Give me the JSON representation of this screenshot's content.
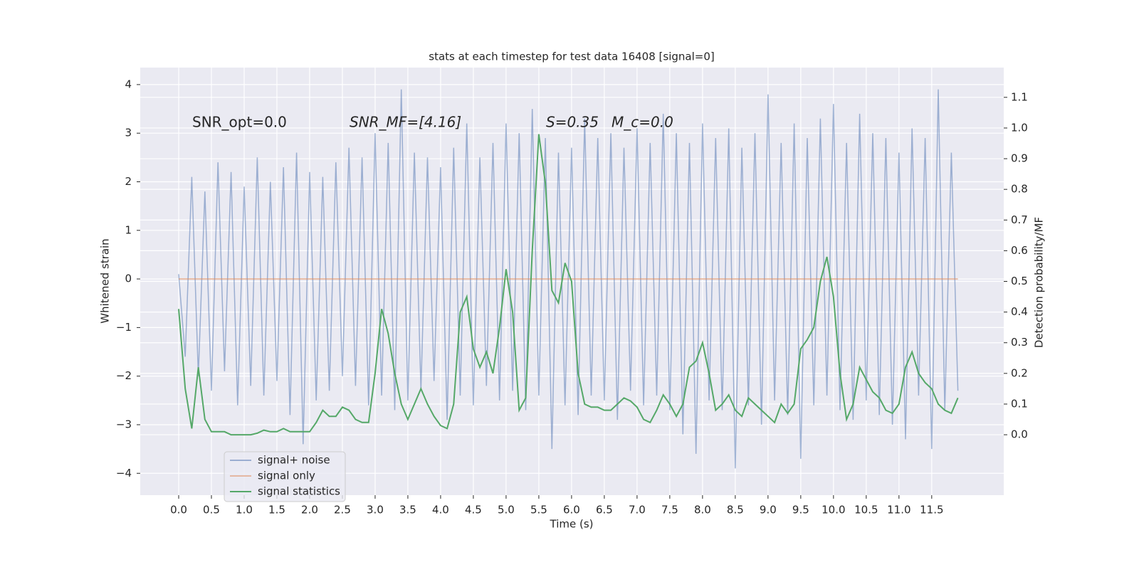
{
  "chart_data": {
    "type": "line",
    "title": "stats at each timestep for test data 16408 [signal=0]",
    "xlabel": "Time (s)",
    "ylabel": "Whitened strain",
    "y2label": "Detection probability/MF",
    "annotations": [
      "SNR_opt=0.0",
      "SNR_MF=[4.16]",
      "S=0.35",
      "M_c=0.0"
    ],
    "legend": "lower left",
    "grid": true,
    "xlim": [
      -0.587,
      12.6
    ],
    "ylim": [
      -4.45,
      4.35
    ],
    "y2lim": [
      -0.197,
      1.197
    ],
    "xticks": [
      {
        "value": 0,
        "label": "0.0"
      },
      {
        "value": 0.5,
        "label": "0.5"
      },
      {
        "value": 1,
        "label": "1.0"
      },
      {
        "value": 1.5,
        "label": "1.5"
      },
      {
        "value": 2,
        "label": "2.0"
      },
      {
        "value": 2.5,
        "label": "2.5"
      },
      {
        "value": 3,
        "label": "3.0"
      },
      {
        "value": 3.5,
        "label": "3.5"
      },
      {
        "value": 4,
        "label": "4.0"
      },
      {
        "value": 4.5,
        "label": "4.5"
      },
      {
        "value": 5,
        "label": "5.0"
      },
      {
        "value": 5.5,
        "label": "5.5"
      },
      {
        "value": 6,
        "label": "6.0"
      },
      {
        "value": 6.5,
        "label": "6.5"
      },
      {
        "value": 7,
        "label": "7.0"
      },
      {
        "value": 7.5,
        "label": "7.5"
      },
      {
        "value": 8,
        "label": "8.0"
      },
      {
        "value": 8.5,
        "label": "8.5"
      },
      {
        "value": 9,
        "label": "9.0"
      },
      {
        "value": 9.5,
        "label": "9.5"
      },
      {
        "value": 10,
        "label": "10.0"
      },
      {
        "value": 10.5,
        "label": "10.5"
      },
      {
        "value": 11,
        "label": "11.0"
      },
      {
        "value": 11.5,
        "label": "11.5"
      }
    ],
    "yticks": [
      {
        "value": -4,
        "label": "−4"
      },
      {
        "value": -3,
        "label": "−3"
      },
      {
        "value": -2,
        "label": "−2"
      },
      {
        "value": -1,
        "label": "−1"
      },
      0,
      1,
      2,
      3,
      4
    ],
    "y2ticks": [
      {
        "value": 0,
        "label": "0.0"
      },
      {
        "value": 0.1,
        "label": "0.1"
      },
      {
        "value": 0.2,
        "label": "0.2"
      },
      {
        "value": 0.3,
        "label": "0.3"
      },
      {
        "value": 0.4,
        "label": "0.4"
      },
      {
        "value": 0.5,
        "label": "0.5"
      },
      {
        "value": 0.6,
        "label": "0.6"
      },
      {
        "value": 0.7,
        "label": "0.7"
      },
      {
        "value": 0.8,
        "label": "0.8"
      },
      {
        "value": 0.9,
        "label": "0.9"
      },
      {
        "value": 1,
        "label": "1.0"
      },
      {
        "value": 1.1,
        "label": "1.1"
      }
    ],
    "x": [
      0,
      0.1,
      0.2,
      0.3,
      0.4,
      0.5,
      0.6,
      0.7,
      0.8,
      0.9,
      1,
      1.1,
      1.2,
      1.3,
      1.4,
      1.5,
      1.6,
      1.7,
      1.8,
      1.9,
      2,
      2.1,
      2.2,
      2.3,
      2.4,
      2.5,
      2.6,
      2.7,
      2.8,
      2.9,
      3,
      3.1,
      3.2,
      3.3,
      3.4,
      3.5,
      3.6,
      3.7,
      3.8,
      3.9,
      4,
      4.1,
      4.2,
      4.3,
      4.4,
      4.5,
      4.6,
      4.7,
      4.8,
      4.9,
      5,
      5.1,
      5.2,
      5.3,
      5.4,
      5.5,
      5.6,
      5.7,
      5.8,
      5.9,
      6,
      6.1,
      6.2,
      6.3,
      6.4,
      6.5,
      6.6,
      6.7,
      6.8,
      6.9,
      7,
      7.1,
      7.2,
      7.3,
      7.4,
      7.5,
      7.6,
      7.7,
      7.8,
      7.9,
      8,
      8.1,
      8.2,
      8.3,
      8.4,
      8.5,
      8.6,
      8.7,
      8.8,
      8.9,
      9,
      9.1,
      9.2,
      9.3,
      9.4,
      9.5,
      9.6,
      9.7,
      9.8,
      9.9,
      10,
      10.1,
      10.2,
      10.3,
      10.4,
      10.5,
      10.6,
      10.7,
      10.8,
      10.9,
      11,
      11.1,
      11.2,
      11.3,
      11.4,
      11.5,
      11.6,
      11.7,
      11.8,
      11.9
    ],
    "series": [
      {
        "name": "signal+ noise",
        "color": "#4c72b0",
        "values": [
          0.1,
          -1.6,
          2.1,
          -2.0,
          1.8,
          -2.3,
          2.4,
          -1.9,
          2.2,
          -2.6,
          1.9,
          -2.2,
          2.5,
          -2.4,
          2.0,
          -2.1,
          2.3,
          -2.8,
          2.6,
          -3.4,
          2.2,
          -2.5,
          2.1,
          -2.3,
          2.4,
          -2.0,
          2.7,
          -2.2,
          2.5,
          -2.6,
          3.0,
          -2.4,
          2.8,
          -2.7,
          3.9,
          -2.5,
          2.6,
          -2.3,
          2.5,
          -2.1,
          2.3,
          -2.9,
          2.7,
          -2.4,
          3.2,
          -2.6,
          2.5,
          -2.2,
          2.8,
          -2.5,
          3.2,
          -2.3,
          3.0,
          -2.7,
          3.5,
          -2.4,
          2.9,
          -3.5,
          2.6,
          -2.6,
          2.7,
          -2.8,
          3.3,
          -2.4,
          2.9,
          -2.5,
          3.0,
          -2.9,
          2.7,
          -2.3,
          3.1,
          -2.6,
          2.8,
          -2.4,
          3.4,
          -2.7,
          3.0,
          -3.2,
          2.8,
          -3.6,
          3.2,
          -2.5,
          2.9,
          -2.7,
          3.1,
          -3.9,
          2.7,
          -2.6,
          3.0,
          -3.0,
          3.8,
          -2.5,
          2.8,
          -2.8,
          3.2,
          -3.7,
          2.9,
          -2.6,
          3.3,
          -2.4,
          3.6,
          -2.7,
          2.8,
          -2.9,
          3.4,
          -2.5,
          3.0,
          -2.8,
          2.9,
          -3.0,
          2.6,
          -3.3,
          3.1,
          -2.4,
          2.9,
          -3.5,
          3.9,
          -2.7,
          2.6,
          -2.3
        ]
      },
      {
        "name": "signal only",
        "color": "#dd8452",
        "values": [
          0,
          0,
          0,
          0,
          0,
          0,
          0,
          0,
          0,
          0,
          0,
          0,
          0,
          0,
          0,
          0,
          0,
          0,
          0,
          0,
          0,
          0,
          0,
          0,
          0,
          0,
          0,
          0,
          0,
          0,
          0,
          0,
          0,
          0,
          0,
          0,
          0,
          0,
          0,
          0,
          0,
          0,
          0,
          0,
          0,
          0,
          0,
          0,
          0,
          0,
          0,
          0,
          0,
          0,
          0,
          0,
          0,
          0,
          0,
          0,
          0,
          0,
          0,
          0,
          0,
          0,
          0,
          0,
          0,
          0,
          0,
          0,
          0,
          0,
          0,
          0,
          0,
          0,
          0,
          0,
          0,
          0,
          0,
          0,
          0,
          0,
          0,
          0,
          0,
          0,
          0,
          0,
          0,
          0,
          0,
          0,
          0,
          0,
          0,
          0,
          0,
          0,
          0,
          0,
          0,
          0,
          0,
          0,
          0,
          0,
          0,
          0,
          0,
          0,
          0,
          0,
          0,
          0,
          0,
          0
        ]
      },
      {
        "name": "signal statistics",
        "color": "#55a868",
        "axis": "y2",
        "values": [
          0.41,
          0.15,
          0.02,
          0.22,
          0.05,
          0.01,
          0.01,
          0.01,
          0.0,
          0.0,
          0.0,
          0.0,
          0.005,
          0.015,
          0.01,
          0.01,
          0.02,
          0.01,
          0.01,
          0.01,
          0.01,
          0.04,
          0.08,
          0.06,
          0.06,
          0.09,
          0.08,
          0.05,
          0.04,
          0.04,
          0.2,
          0.41,
          0.33,
          0.2,
          0.1,
          0.05,
          0.1,
          0.15,
          0.1,
          0.06,
          0.03,
          0.02,
          0.1,
          0.4,
          0.45,
          0.28,
          0.22,
          0.27,
          0.2,
          0.35,
          0.54,
          0.4,
          0.08,
          0.12,
          0.6,
          0.98,
          0.82,
          0.47,
          0.43,
          0.56,
          0.5,
          0.2,
          0.1,
          0.09,
          0.09,
          0.08,
          0.08,
          0.1,
          0.12,
          0.11,
          0.09,
          0.05,
          0.04,
          0.08,
          0.13,
          0.1,
          0.06,
          0.1,
          0.22,
          0.24,
          0.3,
          0.2,
          0.08,
          0.1,
          0.13,
          0.08,
          0.06,
          0.12,
          0.1,
          0.08,
          0.06,
          0.04,
          0.1,
          0.07,
          0.1,
          0.28,
          0.31,
          0.35,
          0.5,
          0.58,
          0.45,
          0.2,
          0.05,
          0.1,
          0.22,
          0.18,
          0.14,
          0.12,
          0.08,
          0.07,
          0.1,
          0.22,
          0.27,
          0.2,
          0.17,
          0.15,
          0.1,
          0.08,
          0.07,
          0.12
        ]
      }
    ]
  }
}
